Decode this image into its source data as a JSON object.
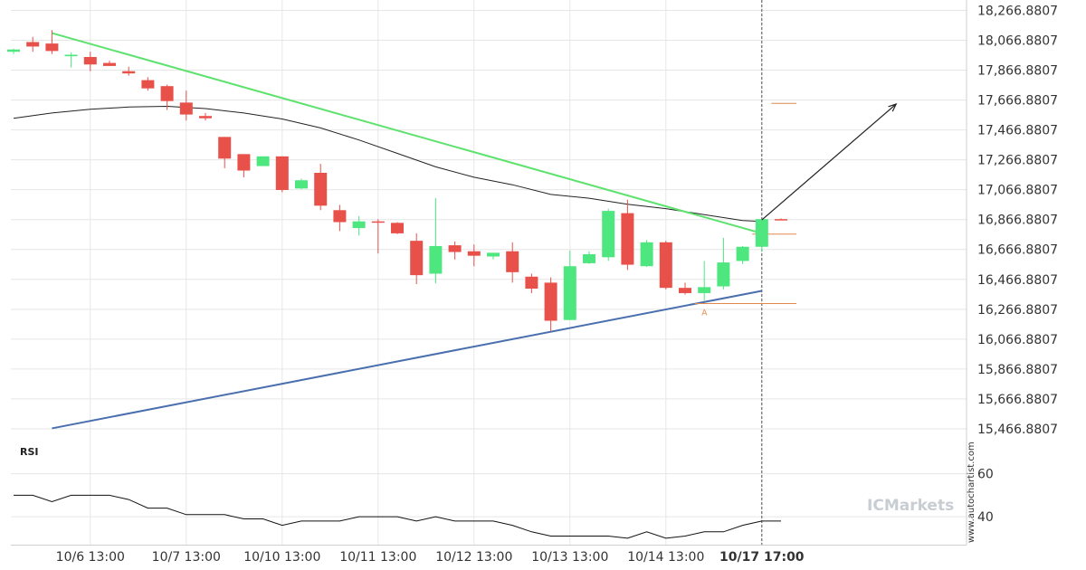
{
  "colors": {
    "bull": "#4ee67f",
    "bear": "#e8504a",
    "resistance": "#5de26e",
    "support": "#4a6fae",
    "ma": "#222222",
    "level": "#e2884b",
    "grid": "#e6e6e6",
    "watermark": "#c8cdd3"
  },
  "chart_data": {
    "type": "candlestick",
    "price_axis": {
      "ticks": [
        "18,266.8807",
        "18,066.8807",
        "17,866.8807",
        "17,666.8807",
        "17,466.8807",
        "17,266.8807",
        "17,066.8807",
        "16,866.8807",
        "16,666.8807",
        "16,466.8807",
        "16,266.8807",
        "16,066.8807",
        "15,866.8807",
        "15,666.8807",
        "15,466.8807"
      ],
      "range": [
        15400,
        18300
      ]
    },
    "time_axis": {
      "labels": [
        "10/6 13:00",
        "10/7 13:00",
        "10/10 13:00",
        "10/11 13:00",
        "10/12 13:00",
        "10/13 13:00",
        "10/14 13:00",
        "10/17 17:00"
      ],
      "label_bars": [
        4,
        9,
        14,
        19,
        24,
        29,
        34,
        39
      ],
      "highlight_label": "10/17 17:00"
    },
    "candles": [
      {
        "o": 17990,
        "h": 18010,
        "l": 17975,
        "c": 18005
      },
      {
        "o": 18055,
        "h": 18090,
        "l": 17990,
        "c": 18025
      },
      {
        "o": 18045,
        "h": 18135,
        "l": 17975,
        "c": 17995
      },
      {
        "o": 17960,
        "h": 17985,
        "l": 17885,
        "c": 17970
      },
      {
        "o": 17955,
        "h": 17990,
        "l": 17860,
        "c": 17905
      },
      {
        "o": 17915,
        "h": 17930,
        "l": 17895,
        "c": 17895
      },
      {
        "o": 17860,
        "h": 17890,
        "l": 17830,
        "c": 17845
      },
      {
        "o": 17800,
        "h": 17820,
        "l": 17730,
        "c": 17745
      },
      {
        "o": 17760,
        "h": 17770,
        "l": 17600,
        "c": 17660
      },
      {
        "o": 17650,
        "h": 17730,
        "l": 17530,
        "c": 17570
      },
      {
        "o": 17560,
        "h": 17580,
        "l": 17530,
        "c": 17545
      },
      {
        "o": 17420,
        "h": 17420,
        "l": 17210,
        "c": 17275
      },
      {
        "o": 17305,
        "h": 17305,
        "l": 17150,
        "c": 17195
      },
      {
        "o": 17225,
        "h": 17290,
        "l": 17225,
        "c": 17290
      },
      {
        "o": 17290,
        "h": 17290,
        "l": 17050,
        "c": 17065
      },
      {
        "o": 17075,
        "h": 17140,
        "l": 17070,
        "c": 17130
      },
      {
        "o": 17180,
        "h": 17240,
        "l": 16930,
        "c": 16960
      },
      {
        "o": 16930,
        "h": 16965,
        "l": 16790,
        "c": 16850
      },
      {
        "o": 16810,
        "h": 16890,
        "l": 16760,
        "c": 16855
      },
      {
        "o": 16855,
        "h": 16870,
        "l": 16640,
        "c": 16850
      },
      {
        "o": 16845,
        "h": 16850,
        "l": 16770,
        "c": 16775
      },
      {
        "o": 16725,
        "h": 16775,
        "l": 16435,
        "c": 16495
      },
      {
        "o": 16505,
        "h": 17010,
        "l": 16440,
        "c": 16690
      },
      {
        "o": 16695,
        "h": 16720,
        "l": 16600,
        "c": 16650
      },
      {
        "o": 16655,
        "h": 16700,
        "l": 16555,
        "c": 16625
      },
      {
        "o": 16620,
        "h": 16640,
        "l": 16600,
        "c": 16645
      },
      {
        "o": 16655,
        "h": 16715,
        "l": 16445,
        "c": 16515
      },
      {
        "o": 16485,
        "h": 16505,
        "l": 16375,
        "c": 16405
      },
      {
        "o": 16445,
        "h": 16480,
        "l": 16120,
        "c": 16190
      },
      {
        "o": 16195,
        "h": 16660,
        "l": 16195,
        "c": 16555
      },
      {
        "o": 16575,
        "h": 16655,
        "l": 16570,
        "c": 16635
      },
      {
        "o": 16615,
        "h": 16940,
        "l": 16590,
        "c": 16925
      },
      {
        "o": 16910,
        "h": 17000,
        "l": 16530,
        "c": 16565
      },
      {
        "o": 16555,
        "h": 16730,
        "l": 16550,
        "c": 16715
      },
      {
        "o": 16715,
        "h": 16725,
        "l": 16400,
        "c": 16410
      },
      {
        "o": 16410,
        "h": 16445,
        "l": 16365,
        "c": 16375
      },
      {
        "o": 16375,
        "h": 16590,
        "l": 16325,
        "c": 16415
      },
      {
        "o": 16420,
        "h": 16745,
        "l": 16400,
        "c": 16580
      },
      {
        "o": 16590,
        "h": 16690,
        "l": 16570,
        "c": 16685
      },
      {
        "o": 16685,
        "h": 16870,
        "l": 16655,
        "c": 16870
      },
      {
        "o": 16870,
        "h": 16875,
        "l": 16865,
        "c": 16865
      }
    ],
    "moving_average": [
      [
        0,
        17545
      ],
      [
        2,
        17580
      ],
      [
        4,
        17605
      ],
      [
        6,
        17620
      ],
      [
        8,
        17625
      ],
      [
        10,
        17610
      ],
      [
        12,
        17580
      ],
      [
        14,
        17540
      ],
      [
        16,
        17480
      ],
      [
        18,
        17400
      ],
      [
        20,
        17310
      ],
      [
        22,
        17220
      ],
      [
        24,
        17150
      ],
      [
        26,
        17100
      ],
      [
        28,
        17035
      ],
      [
        30,
        17010
      ],
      [
        32,
        16970
      ],
      [
        34,
        16940
      ],
      [
        36,
        16900
      ],
      [
        38,
        16860
      ],
      [
        39,
        16855
      ]
    ],
    "resistance_line": [
      [
        2,
        18115
      ],
      [
        39,
        16775
      ]
    ],
    "support_line": [
      [
        2,
        15470
      ],
      [
        39,
        16390
      ]
    ],
    "levels": [
      {
        "value": 17645,
        "from_bar": 39.5,
        "to_bar": 40.8
      },
      {
        "value": 16770,
        "from_bar": 38.5,
        "to_bar": 40.8
      },
      {
        "value": 16305,
        "from_bar": 35.5,
        "to_bar": 40.8
      }
    ],
    "projection": [
      [
        39,
        16865
      ],
      [
        46,
        17640
      ]
    ],
    "marker_bar": 39,
    "pattern_point": {
      "bar": 36,
      "value": 16310,
      "label": "A"
    },
    "rsi": {
      "label": "RSI",
      "ticks": [
        60,
        40
      ],
      "range": [
        27,
        75
      ],
      "values": [
        50,
        50,
        47,
        50,
        50,
        50,
        48,
        44,
        44,
        41,
        41,
        41,
        39,
        39,
        36,
        38,
        38,
        38,
        40,
        40,
        40,
        38,
        40,
        38,
        38,
        38,
        36,
        33,
        31,
        31,
        31,
        31,
        30,
        33,
        30,
        31,
        33,
        33,
        36,
        38,
        38
      ]
    }
  },
  "watermark": {
    "prefix": "IC",
    "text": "Markets"
  },
  "credit": "www.autochartist.com"
}
